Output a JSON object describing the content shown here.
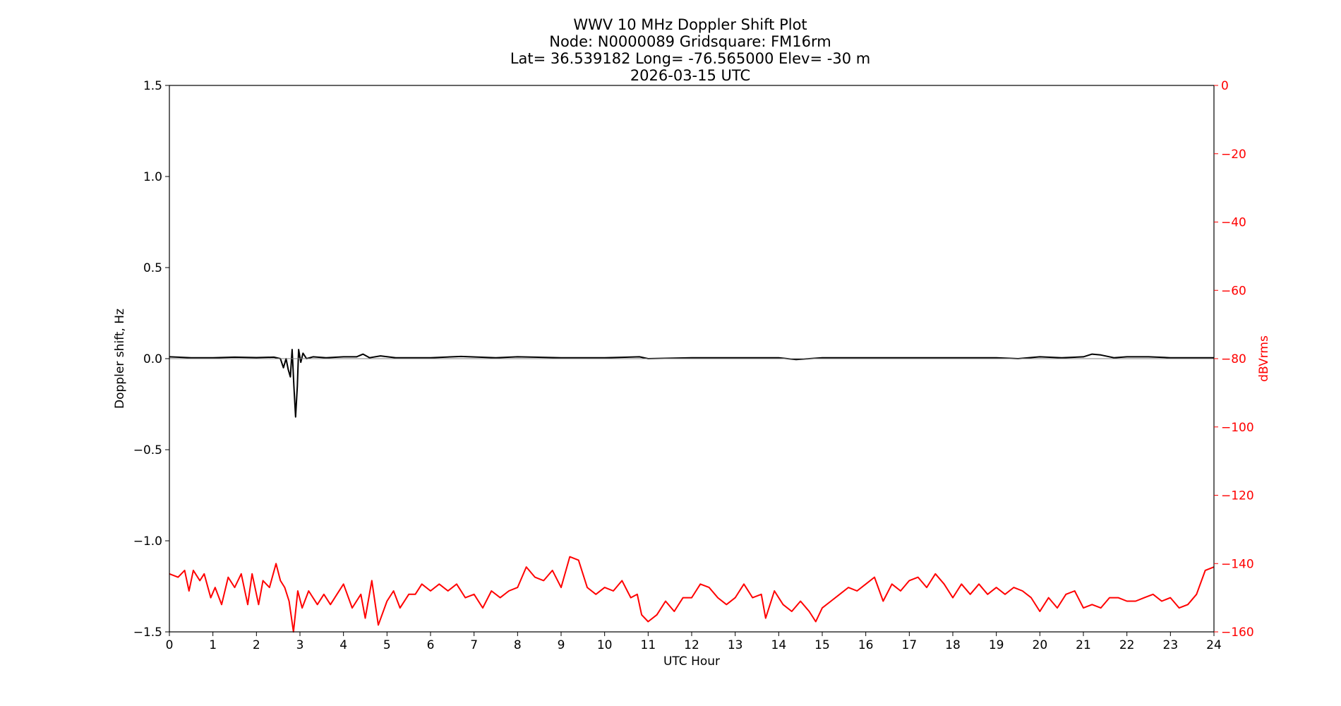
{
  "chart_data": {
    "type": "line",
    "title_lines": [
      "WWV 10 MHz Doppler Shift Plot",
      "Node:  N0000089     Gridsquare:  FM16rm",
      "Lat= 36.539182    Long= -76.565000    Elev= -30 m",
      "2026-03-15  UTC"
    ],
    "xlabel": "UTC Hour",
    "ylabel": "Doppler shift, Hz",
    "ylabel_right": "dBVrms",
    "xlim": [
      0,
      24
    ],
    "ylim": [
      -1.5,
      1.5
    ],
    "ylim_right": [
      -160,
      0
    ],
    "right_axis_inverted": true,
    "grid": false,
    "x_ticks": [
      "0",
      "1",
      "2",
      "3",
      "4",
      "5",
      "6",
      "7",
      "8",
      "9",
      "10",
      "11",
      "12",
      "13",
      "14",
      "15",
      "16",
      "17",
      "18",
      "19",
      "20",
      "21",
      "22",
      "23",
      "24"
    ],
    "y_ticks": [
      "1.5",
      "1.0",
      "0.5",
      "0.0",
      "−0.5",
      "−1.0",
      "−1.5"
    ],
    "y_ticks_right": [
      "0",
      "−20",
      "−40",
      "−60",
      "−80",
      "−100",
      "−120",
      "−140",
      "−160"
    ],
    "series": [
      {
        "axis": "left",
        "color": "#000000",
        "points": [
          [
            0,
            0.01
          ],
          [
            0.5,
            0.005
          ],
          [
            1,
            0.005
          ],
          [
            1.5,
            0.008
          ],
          [
            2,
            0.006
          ],
          [
            2.4,
            0.008
          ],
          [
            2.55,
            0.0
          ],
          [
            2.62,
            -0.05
          ],
          [
            2.68,
            0.0
          ],
          [
            2.73,
            -0.06
          ],
          [
            2.78,
            -0.1
          ],
          [
            2.82,
            0.05
          ],
          [
            2.86,
            -0.15
          ],
          [
            2.9,
            -0.32
          ],
          [
            2.94,
            -0.15
          ],
          [
            2.97,
            0.05
          ],
          [
            3.02,
            -0.02
          ],
          [
            3.07,
            0.03
          ],
          [
            3.15,
            0.0
          ],
          [
            3.3,
            0.01
          ],
          [
            3.6,
            0.005
          ],
          [
            4.0,
            0.01
          ],
          [
            4.3,
            0.01
          ],
          [
            4.45,
            0.025
          ],
          [
            4.6,
            0.005
          ],
          [
            4.85,
            0.015
          ],
          [
            5.2,
            0.005
          ],
          [
            6,
            0.005
          ],
          [
            6.7,
            0.012
          ],
          [
            7.5,
            0.005
          ],
          [
            8,
            0.01
          ],
          [
            9,
            0.005
          ],
          [
            10,
            0.005
          ],
          [
            10.8,
            0.01
          ],
          [
            11,
            0.0
          ],
          [
            12,
            0.005
          ],
          [
            13,
            0.005
          ],
          [
            14,
            0.005
          ],
          [
            14.4,
            -0.005
          ],
          [
            15,
            0.005
          ],
          [
            16,
            0.005
          ],
          [
            17,
            0.005
          ],
          [
            18,
            0.005
          ],
          [
            19,
            0.005
          ],
          [
            19.5,
            0.0
          ],
          [
            20,
            0.01
          ],
          [
            20.5,
            0.005
          ],
          [
            21,
            0.01
          ],
          [
            21.2,
            0.025
          ],
          [
            21.4,
            0.02
          ],
          [
            21.7,
            0.005
          ],
          [
            22,
            0.01
          ],
          [
            22.5,
            0.01
          ],
          [
            23,
            0.005
          ],
          [
            24,
            0.005
          ]
        ]
      },
      {
        "axis": "left",
        "color": "#808080",
        "points": [
          [
            0,
            0.0
          ],
          [
            24,
            0.0
          ]
        ]
      },
      {
        "axis": "right",
        "color": "#ff0000",
        "points": [
          [
            0,
            -143
          ],
          [
            0.2,
            -144
          ],
          [
            0.35,
            -142
          ],
          [
            0.45,
            -148
          ],
          [
            0.55,
            -142
          ],
          [
            0.7,
            -145
          ],
          [
            0.8,
            -143
          ],
          [
            0.95,
            -150
          ],
          [
            1.05,
            -147
          ],
          [
            1.2,
            -152
          ],
          [
            1.35,
            -144
          ],
          [
            1.5,
            -147
          ],
          [
            1.65,
            -143
          ],
          [
            1.8,
            -152
          ],
          [
            1.9,
            -143
          ],
          [
            2.05,
            -152
          ],
          [
            2.15,
            -145
          ],
          [
            2.3,
            -147
          ],
          [
            2.45,
            -140
          ],
          [
            2.55,
            -145
          ],
          [
            2.65,
            -147
          ],
          [
            2.75,
            -151
          ],
          [
            2.85,
            -160
          ],
          [
            2.95,
            -148
          ],
          [
            3.05,
            -153
          ],
          [
            3.2,
            -148
          ],
          [
            3.4,
            -152
          ],
          [
            3.55,
            -149
          ],
          [
            3.7,
            -152
          ],
          [
            3.85,
            -149
          ],
          [
            4.0,
            -146
          ],
          [
            4.2,
            -153
          ],
          [
            4.4,
            -149
          ],
          [
            4.5,
            -156
          ],
          [
            4.65,
            -145
          ],
          [
            4.8,
            -158
          ],
          [
            5.0,
            -151
          ],
          [
            5.15,
            -148
          ],
          [
            5.3,
            -153
          ],
          [
            5.5,
            -149
          ],
          [
            5.65,
            -149
          ],
          [
            5.8,
            -146
          ],
          [
            6.0,
            -148
          ],
          [
            6.2,
            -146
          ],
          [
            6.4,
            -148
          ],
          [
            6.6,
            -146
          ],
          [
            6.8,
            -150
          ],
          [
            7.0,
            -149
          ],
          [
            7.2,
            -153
          ],
          [
            7.4,
            -148
          ],
          [
            7.6,
            -150
          ],
          [
            7.8,
            -148
          ],
          [
            8.0,
            -147
          ],
          [
            8.2,
            -141
          ],
          [
            8.4,
            -144
          ],
          [
            8.6,
            -145
          ],
          [
            8.8,
            -142
          ],
          [
            9.0,
            -147
          ],
          [
            9.2,
            -138
          ],
          [
            9.4,
            -139
          ],
          [
            9.6,
            -147
          ],
          [
            9.8,
            -149
          ],
          [
            10.0,
            -147
          ],
          [
            10.2,
            -148
          ],
          [
            10.4,
            -145
          ],
          [
            10.6,
            -150
          ],
          [
            10.75,
            -149
          ],
          [
            10.85,
            -155
          ],
          [
            11.0,
            -157
          ],
          [
            11.2,
            -155
          ],
          [
            11.4,
            -151
          ],
          [
            11.6,
            -154
          ],
          [
            11.8,
            -150
          ],
          [
            12.0,
            -150
          ],
          [
            12.2,
            -146
          ],
          [
            12.4,
            -147
          ],
          [
            12.6,
            -150
          ],
          [
            12.8,
            -152
          ],
          [
            13.0,
            -150
          ],
          [
            13.2,
            -146
          ],
          [
            13.4,
            -150
          ],
          [
            13.6,
            -149
          ],
          [
            13.7,
            -156
          ],
          [
            13.9,
            -148
          ],
          [
            14.1,
            -152
          ],
          [
            14.3,
            -154
          ],
          [
            14.5,
            -151
          ],
          [
            14.7,
            -154
          ],
          [
            14.85,
            -157
          ],
          [
            15.0,
            -153
          ],
          [
            15.2,
            -151
          ],
          [
            15.4,
            -149
          ],
          [
            15.6,
            -147
          ],
          [
            15.8,
            -148
          ],
          [
            16.0,
            -146
          ],
          [
            16.2,
            -144
          ],
          [
            16.4,
            -151
          ],
          [
            16.6,
            -146
          ],
          [
            16.8,
            -148
          ],
          [
            17.0,
            -145
          ],
          [
            17.2,
            -144
          ],
          [
            17.4,
            -147
          ],
          [
            17.6,
            -143
          ],
          [
            17.8,
            -146
          ],
          [
            18.0,
            -150
          ],
          [
            18.2,
            -146
          ],
          [
            18.4,
            -149
          ],
          [
            18.6,
            -146
          ],
          [
            18.8,
            -149
          ],
          [
            19.0,
            -147
          ],
          [
            19.2,
            -149
          ],
          [
            19.4,
            -147
          ],
          [
            19.6,
            -148
          ],
          [
            19.8,
            -150
          ],
          [
            20.0,
            -154
          ],
          [
            20.2,
            -150
          ],
          [
            20.4,
            -153
          ],
          [
            20.6,
            -149
          ],
          [
            20.8,
            -148
          ],
          [
            21.0,
            -153
          ],
          [
            21.2,
            -152
          ],
          [
            21.4,
            -153
          ],
          [
            21.6,
            -150
          ],
          [
            21.8,
            -150
          ],
          [
            22.0,
            -151
          ],
          [
            22.2,
            -151
          ],
          [
            22.4,
            -150
          ],
          [
            22.6,
            -149
          ],
          [
            22.8,
            -151
          ],
          [
            23.0,
            -150
          ],
          [
            23.2,
            -153
          ],
          [
            23.4,
            -152
          ],
          [
            23.6,
            -149
          ],
          [
            23.8,
            -142
          ],
          [
            24.0,
            -141
          ]
        ]
      }
    ]
  }
}
